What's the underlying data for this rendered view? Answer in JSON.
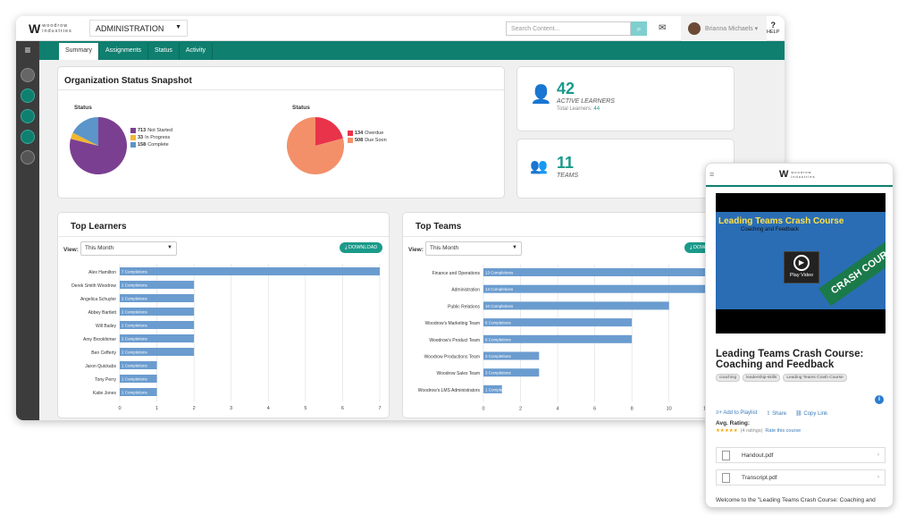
{
  "app": {
    "logo_mark": "W",
    "logo_line1": "woodrow",
    "logo_line2": "industries",
    "section": "ADMINISTRATION",
    "search_placeholder": "Search Content...",
    "user_name": "Brianna Michaels",
    "help_label": "HELP"
  },
  "tabs": [
    {
      "label": "Summary",
      "active": true
    },
    {
      "label": "Assignments"
    },
    {
      "label": "Status"
    },
    {
      "label": "Activity"
    }
  ],
  "snapshot": {
    "title": "Organization Status Snapshot",
    "pie1": {
      "label": "Status",
      "items": [
        {
          "value": "713",
          "label": "Not Started",
          "color": "#7b3f91"
        },
        {
          "value": "33",
          "label": "In Progress",
          "color": "#f2b731"
        },
        {
          "value": "158",
          "label": "Complete",
          "color": "#5b95c9"
        }
      ]
    },
    "pie2": {
      "label": "Status",
      "items": [
        {
          "value": "134",
          "label": "Overdue",
          "color": "#e8334a"
        },
        {
          "value": "508",
          "label": "Due Soon",
          "color": "#f3906a"
        }
      ]
    }
  },
  "learners_card": {
    "value": "42",
    "label": "ACTIVE LEARNERS",
    "total_label": "Total Learners:",
    "total_value": "44"
  },
  "teams_card": {
    "value": "11",
    "label": "TEAMS"
  },
  "top_learners": {
    "title": "Top Learners",
    "view_label": "View:",
    "view_value": "This Month",
    "download": "DOWNLOAD"
  },
  "top_teams": {
    "title": "Top Teams",
    "view_label": "View:",
    "view_value": "This Month",
    "download": "DOWNLOAD"
  },
  "chart_data": [
    {
      "type": "bar",
      "title": "Top Learners",
      "orientation": "horizontal",
      "categories": [
        "Alex Hamilton",
        "Derek Smith Woodrow",
        "Angelica Schuyler",
        "Abbey Bartlett",
        "Will Bailey",
        "Amy Brookhimer",
        "Ben Cefferty",
        "Jaron Quickabs",
        "Tony Perry",
        "Katie Jones"
      ],
      "values": [
        7,
        2,
        2,
        2,
        2,
        2,
        2,
        1,
        1,
        1
      ],
      "data_labels": [
        "7 Completions",
        "2 Completions",
        "2 Completions",
        "2 Completions",
        "2 Completions",
        "2 Completions",
        "2 Completions",
        "1 Completions",
        "1 Completions",
        "1 Completions"
      ],
      "xlim": [
        0,
        7
      ],
      "xticks": [
        0,
        1,
        2,
        3,
        4,
        5,
        6,
        7
      ],
      "color": "#6b9ccf"
    },
    {
      "type": "bar",
      "title": "Top Teams",
      "orientation": "horizontal",
      "categories": [
        "Finance and Operations",
        "Administration",
        "Public Relations",
        "Woodrow's Marketing Team",
        "Woodrow's Product Team",
        "Woodrow Productions Team",
        "Woodrow Sales Team",
        "Woodrow's LMS Administrators"
      ],
      "values": [
        13,
        13,
        10,
        8,
        8,
        3,
        3,
        1
      ],
      "data_labels": [
        "13 Completions",
        "13 Completions",
        "10 Completions",
        "8 Completions",
        "8 Completions",
        "3 Completions",
        "3 Completions",
        "1 Completions"
      ],
      "xlim": [
        0,
        13
      ],
      "xticks": [
        0,
        2,
        4,
        6,
        8,
        10,
        12
      ],
      "color": "#6b9ccf"
    }
  ],
  "mobile": {
    "video_title": "Leading Teams Crash Course",
    "video_subtitle": "Coaching and Feedback",
    "play_label": "Play Video",
    "ribbon": "CRASH COURSE",
    "course_title": "Leading Teams Crash Course: Coaching and Feedback",
    "tags": [
      "coaching",
      "leadership-skills",
      "Leading Teams Crash Course"
    ],
    "actions": [
      "Add to Playlist",
      "Share",
      "Copy Link"
    ],
    "rating_label": "Avg. Rating:",
    "stars": "★★★★★",
    "ratings_count": "(4 ratings)",
    "rate_link": "Rate this course",
    "files": [
      "Handout.pdf",
      "Transcript.pdf"
    ],
    "welcome": "Welcome to the \"Leading Teams Crash Course: Coaching and"
  }
}
